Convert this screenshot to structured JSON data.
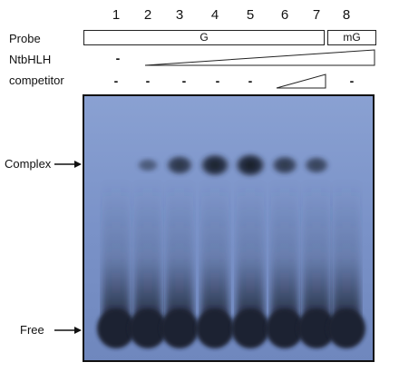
{
  "lanes": [
    "1",
    "2",
    "3",
    "4",
    "5",
    "6",
    "7",
    "8"
  ],
  "rows": {
    "probe": {
      "label": "Probe",
      "box_g": "G",
      "box_mg": "mG"
    },
    "ntbhlh": {
      "label": "NtbHLH",
      "lane1": "-"
    },
    "competitor": {
      "label": "competitor",
      "lanes_1_5": [
        "-",
        "-",
        "-",
        "-",
        "-"
      ],
      "lane8": "-"
    }
  },
  "gel": {
    "complex_label": "Complex",
    "free_label": "Free",
    "complex_intensity": [
      0,
      0.35,
      0.75,
      0.95,
      1.0,
      0.7,
      0.6,
      0
    ],
    "colors": {
      "gel_bg": "#7b93c9",
      "band": "#1c2030"
    }
  }
}
